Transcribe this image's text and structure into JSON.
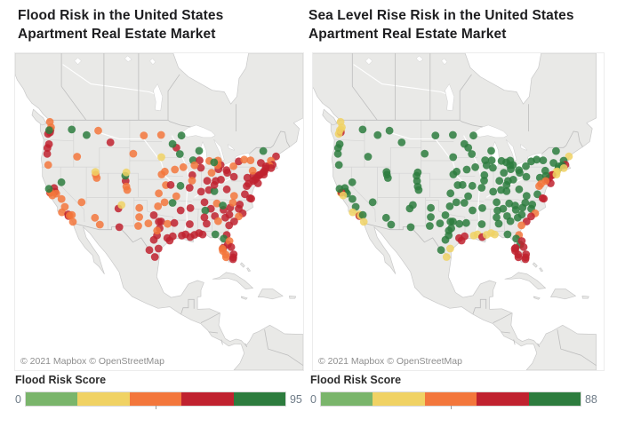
{
  "charts": [
    {
      "id": "flood_risk_map",
      "title": "Flood Risk in the United States Apartment Real Estate Market",
      "attribution": "© 2021 Mapbox © OpenStreetMap",
      "legend": {
        "title": "Flood Risk Score",
        "min": "0",
        "max": "95"
      }
    },
    {
      "id": "sea_level_rise_map",
      "title": "Sea Level Rise Risk in the United States Apartment Real Estate Market",
      "attribution": "© 2021 Mapbox © OpenStreetMap",
      "legend": {
        "title": "Flood Risk Score",
        "min": "0",
        "max": "88"
      }
    }
  ],
  "chart_data": {
    "type": "scatter",
    "subtype": "symbol-map",
    "basemap": "Mapbox light gray, North America",
    "legend_position": "bottom",
    "color_scale": {
      "order": [
        "g",
        "lg",
        "y",
        "o",
        "r"
      ],
      "colors": {
        "g": "#2d7c3e",
        "lg": "#7ab56b",
        "y": "#f0d264",
        "o": "#f3773c",
        "r": "#c0222f"
      },
      "left_range": [
        0,
        95
      ],
      "right_range": [
        0,
        88
      ]
    },
    "point_format": [
      "lon",
      "lat",
      "flood_risk_color",
      "sea_level_rise_color"
    ],
    "points": [
      [
        -122.33,
        47.61,
        "r",
        "y"
      ],
      [
        -122.44,
        47.25,
        "r",
        "r"
      ],
      [
        -122.2,
        47.98,
        "o",
        "y"
      ],
      [
        -122.9,
        47.04,
        "r",
        "y"
      ],
      [
        -122.63,
        47.57,
        "g",
        "y"
      ],
      [
        -122.48,
        48.75,
        "o",
        "y"
      ],
      [
        -117.43,
        47.66,
        "g",
        "g"
      ],
      [
        -122.68,
        45.52,
        "r",
        "g"
      ],
      [
        -123.04,
        44.94,
        "r",
        "g"
      ],
      [
        -123.09,
        44.05,
        "r",
        "g"
      ],
      [
        -122.87,
        42.33,
        "o",
        "g"
      ],
      [
        -116.2,
        43.62,
        "o",
        "g"
      ],
      [
        -114.0,
        46.87,
        "g",
        "g"
      ],
      [
        -108.5,
        45.78,
        "r",
        "g"
      ],
      [
        -111.3,
        47.5,
        "o",
        "g"
      ],
      [
        -111.89,
        40.76,
        "o",
        "g"
      ],
      [
        -111.66,
        40.23,
        "o",
        "g"
      ],
      [
        -111.97,
        41.22,
        "y",
        "g"
      ],
      [
        -119.81,
        39.53,
        "g",
        "g"
      ],
      [
        -121.49,
        38.58,
        "r",
        "g"
      ],
      [
        -121.29,
        37.96,
        "r",
        "g"
      ],
      [
        -120.99,
        37.64,
        "o",
        "g"
      ],
      [
        -122.42,
        37.77,
        "r",
        "y"
      ],
      [
        -122.27,
        37.8,
        "o",
        "r"
      ],
      [
        -121.89,
        37.34,
        "o",
        "y"
      ],
      [
        -122.71,
        38.44,
        "g",
        "g"
      ],
      [
        -119.78,
        36.74,
        "o",
        "g"
      ],
      [
        -119.02,
        35.37,
        "o",
        "g"
      ],
      [
        -119.7,
        34.42,
        "o",
        "y"
      ],
      [
        -118.24,
        34.05,
        "r",
        "y"
      ],
      [
        -118.19,
        33.77,
        "r",
        "r"
      ],
      [
        -117.91,
        33.84,
        "o",
        "y"
      ],
      [
        -117.4,
        33.95,
        "o",
        "g"
      ],
      [
        -117.16,
        32.72,
        "o",
        "y"
      ],
      [
        -115.14,
        36.17,
        "o",
        "g"
      ],
      [
        -112.07,
        33.45,
        "o",
        "g"
      ],
      [
        -110.93,
        32.22,
        "o",
        "g"
      ],
      [
        -106.65,
        35.08,
        "r",
        "g"
      ],
      [
        -105.94,
        35.69,
        "y",
        "g"
      ],
      [
        -106.44,
        31.76,
        "r",
        "g"
      ],
      [
        -104.99,
        39.74,
        "r",
        "g"
      ],
      [
        -104.82,
        38.83,
        "o",
        "g"
      ],
      [
        -105.08,
        40.59,
        "g",
        "g"
      ],
      [
        -104.61,
        38.25,
        "o",
        "g"
      ],
      [
        -104.82,
        41.14,
        "y",
        "g"
      ],
      [
        -100.78,
        46.81,
        "o",
        "g"
      ],
      [
        -96.79,
        46.88,
        "o",
        "g"
      ],
      [
        -96.73,
        43.55,
        "y",
        "g"
      ],
      [
        -103.23,
        44.08,
        "o",
        "g"
      ],
      [
        -95.94,
        41.26,
        "o",
        "g"
      ],
      [
        -96.68,
        40.81,
        "o",
        "g"
      ],
      [
        -97.34,
        37.69,
        "o",
        "g"
      ],
      [
        -95.69,
        39.06,
        "o",
        "g"
      ],
      [
        -94.58,
        39.1,
        "r",
        "g"
      ],
      [
        -93.62,
        41.59,
        "o",
        "g"
      ],
      [
        -91.67,
        41.98,
        "o",
        "g"
      ],
      [
        -93.27,
        44.98,
        "r",
        "g"
      ],
      [
        -94.16,
        45.56,
        "g",
        "g"
      ],
      [
        -92.46,
        44.02,
        "g",
        "g"
      ],
      [
        -92.1,
        46.79,
        "g",
        "g"
      ],
      [
        -89.4,
        43.07,
        "g",
        "g"
      ],
      [
        -87.91,
        43.04,
        "r",
        "g"
      ],
      [
        -88.02,
        44.51,
        "g",
        "g"
      ],
      [
        -87.63,
        41.88,
        "r",
        "g"
      ],
      [
        -89.09,
        42.27,
        "o",
        "g"
      ],
      [
        -89.59,
        40.69,
        "r",
        "g"
      ],
      [
        -89.65,
        39.8,
        "o",
        "g"
      ],
      [
        -90.2,
        38.63,
        "r",
        "g"
      ],
      [
        -92.33,
        38.95,
        "g",
        "g"
      ],
      [
        -93.29,
        37.21,
        "o",
        "g"
      ],
      [
        -95.99,
        36.15,
        "o",
        "g"
      ],
      [
        -97.51,
        35.47,
        "o",
        "g"
      ],
      [
        -94.16,
        36.06,
        "g",
        "g"
      ],
      [
        -92.29,
        34.75,
        "r",
        "g"
      ],
      [
        -101.83,
        35.19,
        "o",
        "g"
      ],
      [
        -101.85,
        33.58,
        "o",
        "g"
      ],
      [
        -102.08,
        31.99,
        "o",
        "g"
      ],
      [
        -99.73,
        32.45,
        "o",
        "g"
      ],
      [
        -98.49,
        33.91,
        "r",
        "g"
      ],
      [
        -96.8,
        32.78,
        "r",
        "g"
      ],
      [
        -97.33,
        32.75,
        "r",
        "g"
      ],
      [
        -97.15,
        31.55,
        "r",
        "g"
      ],
      [
        -95.3,
        32.35,
        "o",
        "g"
      ],
      [
        -93.75,
        32.52,
        "r",
        "g"
      ],
      [
        -97.74,
        30.27,
        "r",
        "g"
      ],
      [
        -98.49,
        29.42,
        "r",
        "g"
      ],
      [
        -97.73,
        31.12,
        "o",
        "g"
      ],
      [
        -95.37,
        29.76,
        "r",
        "r"
      ],
      [
        -94.8,
        29.3,
        "r",
        "r"
      ],
      [
        -97.4,
        27.8,
        "r",
        "y"
      ],
      [
        -98.23,
        26.2,
        "r",
        "y"
      ],
      [
        -99.5,
        27.51,
        "r",
        "g"
      ],
      [
        -94.1,
        30.08,
        "r",
        "r"
      ],
      [
        -92.02,
        30.22,
        "r",
        "y"
      ],
      [
        -91.15,
        30.45,
        "r",
        "y"
      ],
      [
        -90.07,
        29.95,
        "r",
        "r"
      ],
      [
        -89.09,
        30.37,
        "r",
        "y"
      ],
      [
        -88.04,
        30.69,
        "r",
        "y"
      ],
      [
        -87.22,
        30.42,
        "r",
        "y"
      ],
      [
        -90.18,
        32.3,
        "r",
        "g"
      ],
      [
        -90.05,
        35.15,
        "r",
        "g"
      ],
      [
        -86.78,
        36.17,
        "r",
        "g"
      ],
      [
        -83.92,
        35.96,
        "o",
        "g"
      ],
      [
        -85.31,
        35.05,
        "r",
        "g"
      ],
      [
        -86.59,
        34.73,
        "g",
        "g"
      ],
      [
        -86.8,
        33.52,
        "r",
        "g"
      ],
      [
        -86.3,
        32.38,
        "r",
        "g"
      ],
      [
        -84.39,
        33.75,
        "r",
        "g"
      ],
      [
        -83.63,
        32.84,
        "o",
        "g"
      ],
      [
        -81.97,
        33.47,
        "r",
        "g"
      ],
      [
        -81.03,
        34.0,
        "r",
        "g"
      ],
      [
        -82.39,
        34.85,
        "r",
        "g"
      ],
      [
        -82.55,
        35.6,
        "g",
        "g"
      ],
      [
        -80.84,
        35.23,
        "r",
        "g"
      ],
      [
        -80.24,
        36.1,
        "o",
        "g"
      ],
      [
        -78.64,
        35.78,
        "r",
        "g"
      ],
      [
        -78.88,
        35.05,
        "r",
        "g"
      ],
      [
        -77.95,
        34.23,
        "r",
        "o"
      ],
      [
        -78.89,
        33.69,
        "o",
        "r"
      ],
      [
        -79.93,
        32.78,
        "r",
        "r"
      ],
      [
        -81.1,
        32.08,
        "r",
        "o"
      ],
      [
        -81.66,
        30.33,
        "r",
        "o"
      ],
      [
        -82.32,
        29.65,
        "g",
        "g"
      ],
      [
        -81.38,
        28.54,
        "r",
        "g"
      ],
      [
        -81.02,
        29.21,
        "o",
        "r"
      ],
      [
        -80.61,
        28.08,
        "r",
        "r"
      ],
      [
        -82.46,
        27.95,
        "r",
        "r"
      ],
      [
        -82.64,
        27.77,
        "o",
        "r"
      ],
      [
        -82.53,
        27.34,
        "o",
        "r"
      ],
      [
        -81.87,
        26.64,
        "o",
        "r"
      ],
      [
        -81.8,
        26.14,
        "o",
        "r"
      ],
      [
        -80.05,
        26.71,
        "r",
        "r"
      ],
      [
        -80.14,
        26.12,
        "r",
        "r"
      ],
      [
        -80.19,
        25.77,
        "r",
        "r"
      ],
      [
        -84.28,
        30.44,
        "g",
        "g"
      ],
      [
        -85.76,
        38.25,
        "r",
        "g"
      ],
      [
        -84.5,
        38.05,
        "g",
        "g"
      ],
      [
        -84.51,
        39.1,
        "r",
        "g"
      ],
      [
        -84.19,
        39.76,
        "r",
        "g"
      ],
      [
        -82.99,
        39.96,
        "r",
        "g"
      ],
      [
        -86.16,
        39.77,
        "r",
        "g"
      ],
      [
        -85.14,
        41.08,
        "o",
        "g"
      ],
      [
        -87.57,
        37.97,
        "r",
        "g"
      ],
      [
        -83.55,
        41.65,
        "r",
        "g"
      ],
      [
        -81.69,
        41.5,
        "r",
        "g"
      ],
      [
        -81.52,
        41.08,
        "r",
        "g"
      ],
      [
        -83.05,
        42.33,
        "r",
        "g"
      ],
      [
        -83.74,
        42.28,
        "o",
        "g"
      ],
      [
        -83.69,
        43.01,
        "o",
        "g"
      ],
      [
        -85.67,
        42.96,
        "o",
        "g"
      ],
      [
        -84.56,
        42.73,
        "g",
        "g"
      ],
      [
        -79.99,
        40.44,
        "r",
        "g"
      ],
      [
        -80.09,
        42.13,
        "o",
        "g"
      ],
      [
        -78.88,
        42.89,
        "r",
        "g"
      ],
      [
        -77.61,
        43.16,
        "o",
        "g"
      ],
      [
        -76.15,
        43.05,
        "o",
        "g"
      ],
      [
        -73.76,
        42.65,
        "r",
        "g"
      ],
      [
        -73.21,
        44.48,
        "g",
        "g"
      ],
      [
        -70.26,
        43.66,
        "r",
        "y"
      ],
      [
        -71.46,
        42.99,
        "o",
        "g"
      ],
      [
        -71.06,
        42.36,
        "r",
        "r"
      ],
      [
        -71.8,
        42.26,
        "o",
        "g"
      ],
      [
        -72.59,
        42.1,
        "r",
        "g"
      ],
      [
        -72.68,
        41.76,
        "r",
        "g"
      ],
      [
        -72.93,
        41.31,
        "r",
        "y"
      ],
      [
        -73.19,
        41.17,
        "r",
        "y"
      ],
      [
        -71.41,
        41.82,
        "r",
        "y"
      ],
      [
        -74.01,
        40.71,
        "r",
        "r"
      ],
      [
        -74.17,
        40.73,
        "r",
        "r"
      ],
      [
        -73.1,
        40.8,
        "r",
        "y"
      ],
      [
        -74.76,
        40.22,
        "r",
        "r"
      ],
      [
        -74.42,
        39.36,
        "r",
        "r"
      ],
      [
        -75.16,
        39.95,
        "r",
        "r"
      ],
      [
        -75.49,
        40.6,
        "r",
        "g"
      ],
      [
        -75.66,
        41.41,
        "o",
        "g"
      ],
      [
        -76.88,
        40.27,
        "r",
        "g"
      ],
      [
        -75.55,
        39.74,
        "r",
        "o"
      ],
      [
        -76.61,
        39.29,
        "r",
        "o"
      ],
      [
        -77.04,
        38.91,
        "r",
        "o"
      ],
      [
        -77.46,
        37.54,
        "r",
        "g"
      ],
      [
        -76.28,
        36.85,
        "r",
        "r"
      ],
      [
        -75.98,
        36.78,
        "r",
        "r"
      ],
      [
        -79.94,
        37.27,
        "o",
        "g"
      ],
      [
        -81.63,
        38.35,
        "r",
        "g"
      ]
    ]
  }
}
